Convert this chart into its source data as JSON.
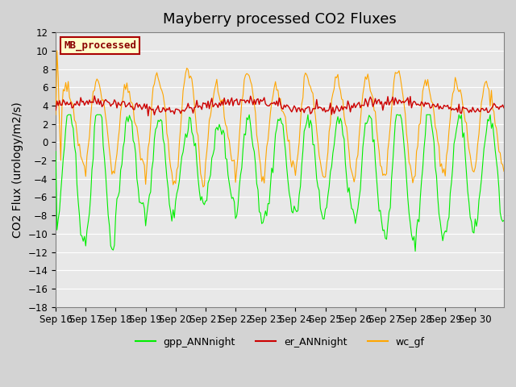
{
  "title": "Mayberry processed CO2 Fluxes",
  "ylabel": "CO2 Flux (urology/m2/s)",
  "xlabel": "",
  "ylim": [
    -18,
    12
  ],
  "yticks": [
    -18,
    -16,
    -14,
    -12,
    -10,
    -8,
    -6,
    -4,
    -2,
    0,
    2,
    4,
    6,
    8,
    10,
    12
  ],
  "bg_color": "#e8e8e8",
  "plot_bg_color": "#e8e8e8",
  "green_color": "#00ee00",
  "red_color": "#cc0000",
  "orange_color": "#ffa500",
  "legend_box_bg": "#ffffcc",
  "legend_box_edge": "#aa0000",
  "legend_box_label": "MB_processed",
  "legend_labels": [
    "gpp_ANNnight",
    "er_ANNnight",
    "wc_gf"
  ],
  "n_points": 360,
  "start_day": 16,
  "end_day": 31,
  "title_fontsize": 13,
  "axis_fontsize": 10,
  "tick_fontsize": 8.5
}
